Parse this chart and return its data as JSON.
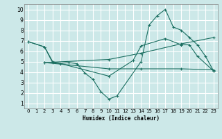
{
  "xlabel": "Humidex (Indice chaleur)",
  "ylabel": "",
  "xlim": [
    -0.5,
    23.5
  ],
  "ylim": [
    0.5,
    10.5
  ],
  "xticks": [
    0,
    1,
    2,
    3,
    4,
    5,
    6,
    7,
    8,
    9,
    10,
    11,
    12,
    13,
    14,
    15,
    16,
    17,
    18,
    19,
    20,
    21,
    22,
    23
  ],
  "yticks": [
    1,
    2,
    3,
    4,
    5,
    6,
    7,
    8,
    9,
    10
  ],
  "bg_color": "#cce8e8",
  "grid_color": "#b0d8d8",
  "line_color": "#1a6e60",
  "lines": [
    {
      "x": [
        0,
        2,
        3,
        4,
        5,
        6,
        7,
        8,
        9,
        10,
        11,
        14,
        15,
        16,
        17,
        18,
        19,
        20,
        21,
        22,
        23
      ],
      "y": [
        6.9,
        6.4,
        4.9,
        4.8,
        4.9,
        4.8,
        3.9,
        3.3,
        2.1,
        1.4,
        1.7,
        5.0,
        8.5,
        9.4,
        10.0,
        8.3,
        8.0,
        7.3,
        6.6,
        5.5,
        4.1
      ]
    },
    {
      "x": [
        0,
        2,
        3,
        10,
        13,
        14,
        17,
        19,
        20,
        21,
        23
      ],
      "y": [
        6.9,
        6.4,
        5.0,
        3.6,
        5.1,
        6.5,
        7.2,
        6.6,
        6.6,
        5.5,
        4.1
      ]
    },
    {
      "x": [
        2,
        10,
        14,
        19,
        23
      ],
      "y": [
        4.9,
        4.3,
        4.3,
        4.3,
        4.2
      ]
    },
    {
      "x": [
        2,
        10,
        14,
        19,
        23
      ],
      "y": [
        4.9,
        5.2,
        5.8,
        6.7,
        7.3
      ]
    }
  ]
}
